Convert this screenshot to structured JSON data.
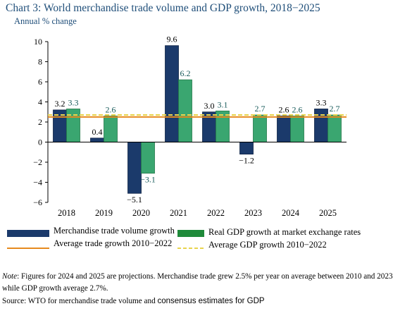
{
  "chart_data": {
    "type": "bar",
    "title": "Chart 3: World merchandise trade volume and GDP growth, 2018−2025",
    "subtitle": "Annual % change",
    "categories": [
      "2018",
      "2019",
      "2020",
      "2021",
      "2022",
      "2023",
      "2024",
      "2025"
    ],
    "series": [
      {
        "name": "Merchandise trade volume  growth",
        "values": [
          3.2,
          0.4,
          -5.1,
          9.6,
          3.0,
          -1.2,
          2.6,
          3.3
        ],
        "color": "#1b3a6b",
        "labels": [
          "3.2",
          "0.4",
          "−5.1",
          "9.6",
          "3.0",
          "−1.2",
          "2.6",
          "3.3"
        ]
      },
      {
        "name": "Real GDP growth at market exchange rates",
        "values": [
          3.3,
          2.6,
          -3.1,
          6.2,
          3.1,
          2.7,
          2.6,
          2.7
        ],
        "color": "#3aa670",
        "labels": [
          "3.3",
          "2.6",
          "−3.1",
          "6.2",
          "3.1",
          "2.7",
          "2.6",
          "2.7"
        ]
      }
    ],
    "reference_lines": [
      {
        "name": "Average trade growth 2010−2022",
        "value": 2.5,
        "color": "#e68a1e",
        "style": "solid"
      },
      {
        "name": "Average GDP growth 2010−2022",
        "value": 2.7,
        "color": "#e8d44d",
        "style": "dashed"
      }
    ],
    "ylim": [
      -6,
      10
    ],
    "yticks": [
      "−6",
      "−4",
      "−2",
      "0",
      "2",
      "4",
      "6",
      "8",
      "10"
    ],
    "ytick_values": [
      -6,
      -4,
      -2,
      0,
      2,
      4,
      6,
      8,
      10
    ],
    "grid": false,
    "legend_position": "bottom"
  },
  "legend": {
    "trade": "Merchandise trade volume  growth",
    "gdp": "Real GDP growth at market exchange rates",
    "avg_trade": "Average trade growth 2010−2022",
    "avg_gdp": "Average GDP growth 2010−2022"
  },
  "notes": {
    "note_label": "Note",
    "note_line1_rest": ": Figures for 2024 and 2025 are projections. Merchandise trade grew 2.5% per year on average between 2010 and 2023",
    "note_line2": "while GDP growth average 2.7%.",
    "source_part1": "Source: WTO for merchandise trade volume and ",
    "source_part2": "consensus estimates for GDP"
  }
}
